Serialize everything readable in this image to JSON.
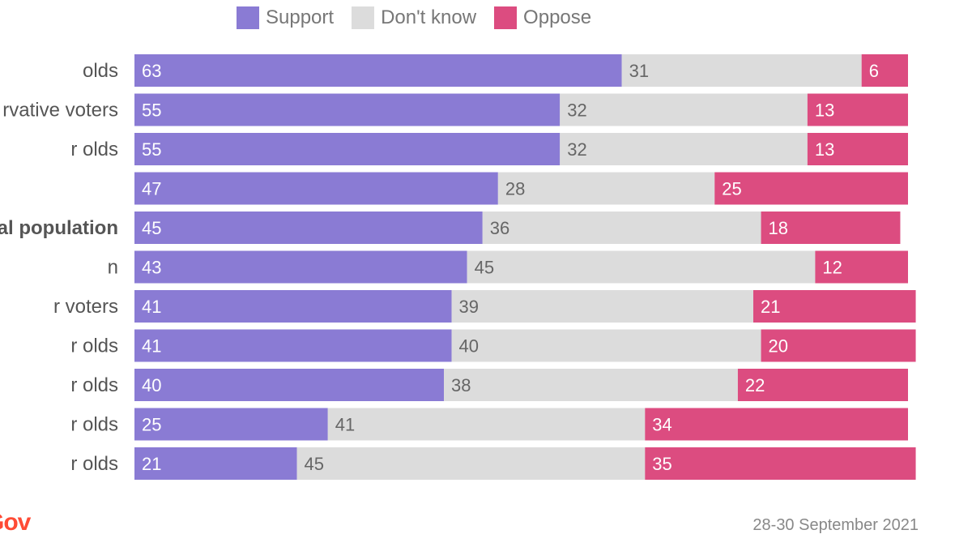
{
  "chart_data": {
    "type": "bar",
    "stacked": true,
    "orientation": "horizontal",
    "categories": [
      "olds",
      "rvative voters",
      "r olds",
      "",
      "al population",
      "n",
      "r voters",
      "r olds",
      "r olds",
      "r olds",
      "r olds"
    ],
    "bold_categories": [
      "al population"
    ],
    "series": [
      {
        "name": "Support",
        "color": "#8a7bd4",
        "label_color": "#ffffff",
        "values": [
          63,
          55,
          55,
          47,
          45,
          43,
          41,
          41,
          40,
          25,
          21
        ]
      },
      {
        "name": "Don't know",
        "color": "#dcdcdc",
        "label_color": "#666666",
        "values": [
          31,
          32,
          32,
          28,
          36,
          45,
          39,
          40,
          38,
          41,
          45
        ]
      },
      {
        "name": "Oppose",
        "color": "#dc4c80",
        "label_color": "#ffffff",
        "values": [
          6,
          13,
          13,
          25,
          18,
          12,
          21,
          20,
          22,
          34,
          35
        ]
      }
    ],
    "legend_position": "top",
    "xlim": [
      0,
      100
    ]
  },
  "brand": {
    "logo_text": "Gov"
  },
  "footer": {
    "date": "28-30 September 2021"
  }
}
